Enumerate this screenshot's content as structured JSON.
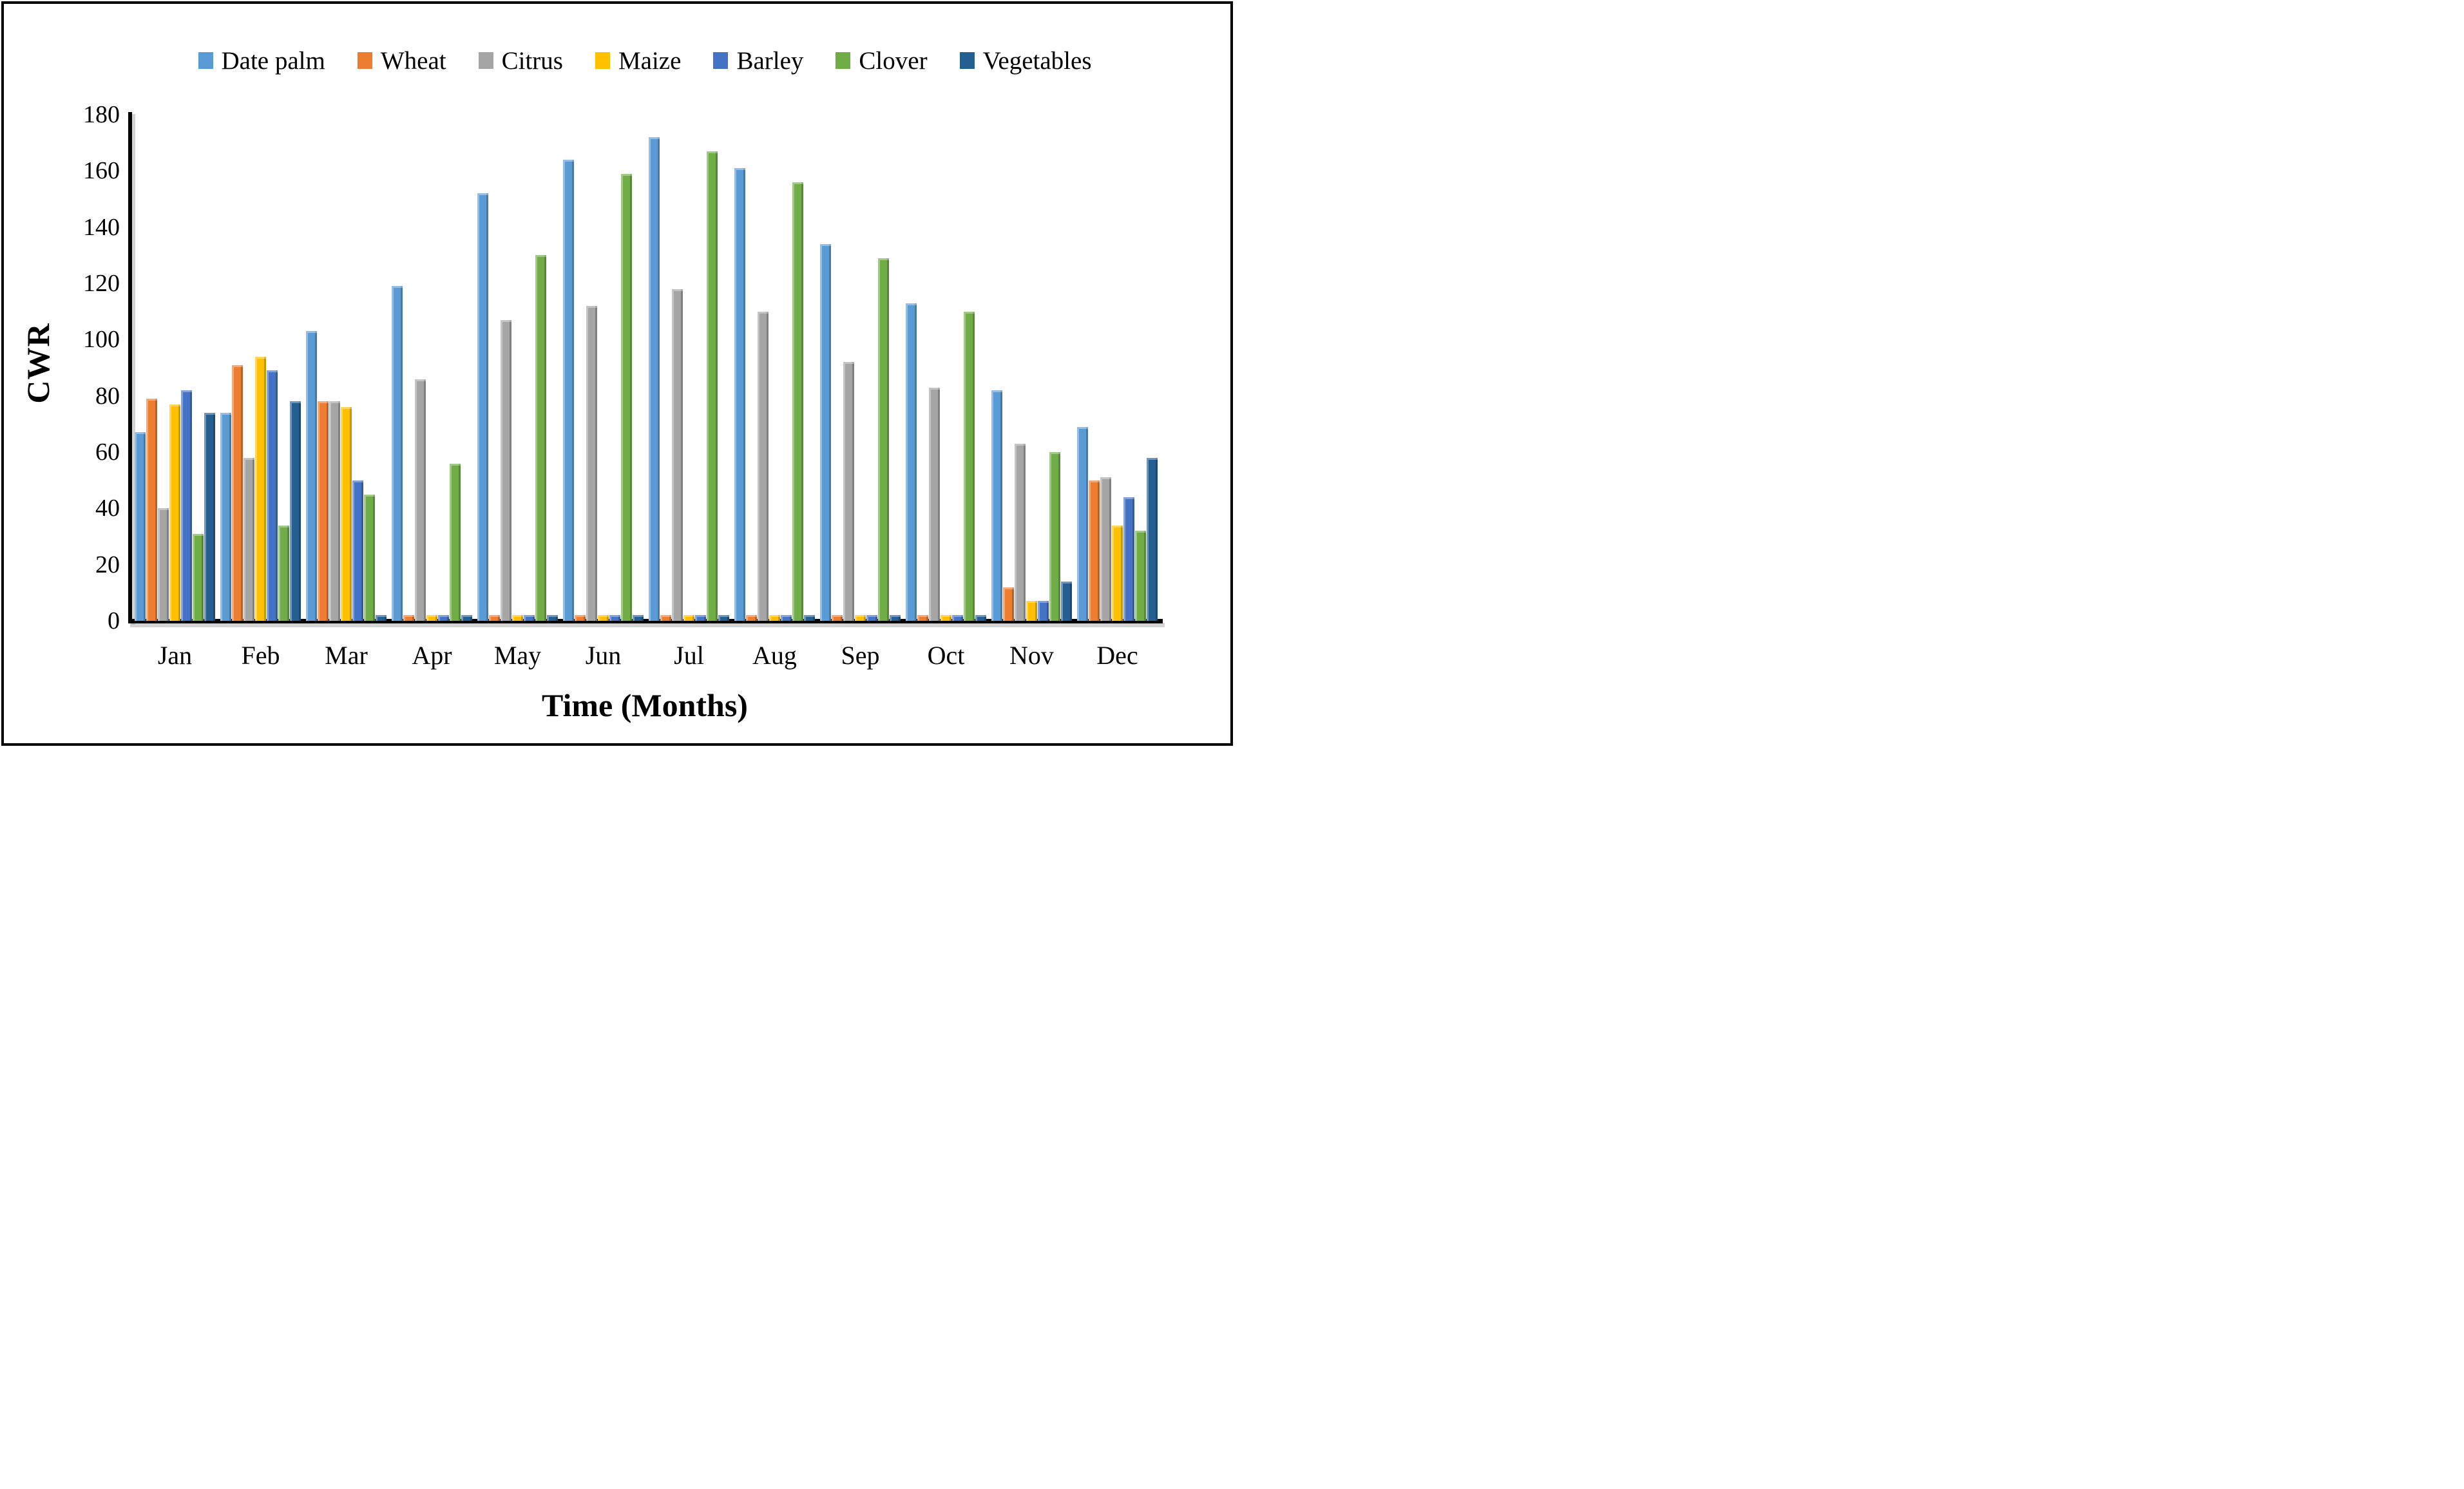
{
  "y_axis": {
    "title": "CWR",
    "ticks": [
      0,
      20,
      40,
      60,
      80,
      100,
      120,
      140,
      160,
      180
    ],
    "min": 0,
    "max": 180
  },
  "x_axis": {
    "title": "Time (Months)"
  },
  "chart_data": {
    "type": "bar",
    "title": "",
    "xlabel": "Time (Months)",
    "ylabel": "CWR",
    "ylim": [
      0,
      180
    ],
    "grid": false,
    "legend_position": "top",
    "categories": [
      "Jan",
      "Feb",
      "Mar",
      "Apr",
      "May",
      "Jun",
      "Jul",
      "Aug",
      "Sep",
      "Oct",
      "Nov",
      "Dec"
    ],
    "series": [
      {
        "name": "Date palm",
        "color": "#5B9BD5",
        "values": [
          67,
          74,
          103,
          119,
          152,
          164,
          172,
          161,
          134,
          113,
          82,
          69
        ]
      },
      {
        "name": "Wheat",
        "color": "#ED7D31",
        "values": [
          79,
          91,
          78,
          2,
          2,
          2,
          2,
          2,
          2,
          2,
          12,
          50
        ]
      },
      {
        "name": "Citrus",
        "color": "#A5A5A5",
        "values": [
          40,
          58,
          78,
          86,
          107,
          112,
          118,
          110,
          92,
          83,
          63,
          51
        ]
      },
      {
        "name": "Maize",
        "color": "#FFC000",
        "values": [
          77,
          94,
          76,
          2,
          2,
          2,
          2,
          2,
          2,
          2,
          7,
          34
        ]
      },
      {
        "name": "Barley",
        "color": "#4472C4",
        "values": [
          82,
          89,
          50,
          2,
          2,
          2,
          2,
          2,
          2,
          2,
          7,
          44
        ]
      },
      {
        "name": "Clover",
        "color": "#70AD47",
        "values": [
          31,
          34,
          45,
          56,
          130,
          159,
          167,
          156,
          129,
          110,
          60,
          32
        ]
      },
      {
        "name": "Vegetables",
        "color": "#255E91",
        "values": [
          74,
          78,
          2,
          2,
          2,
          2,
          2,
          2,
          2,
          2,
          14,
          58
        ]
      }
    ]
  }
}
